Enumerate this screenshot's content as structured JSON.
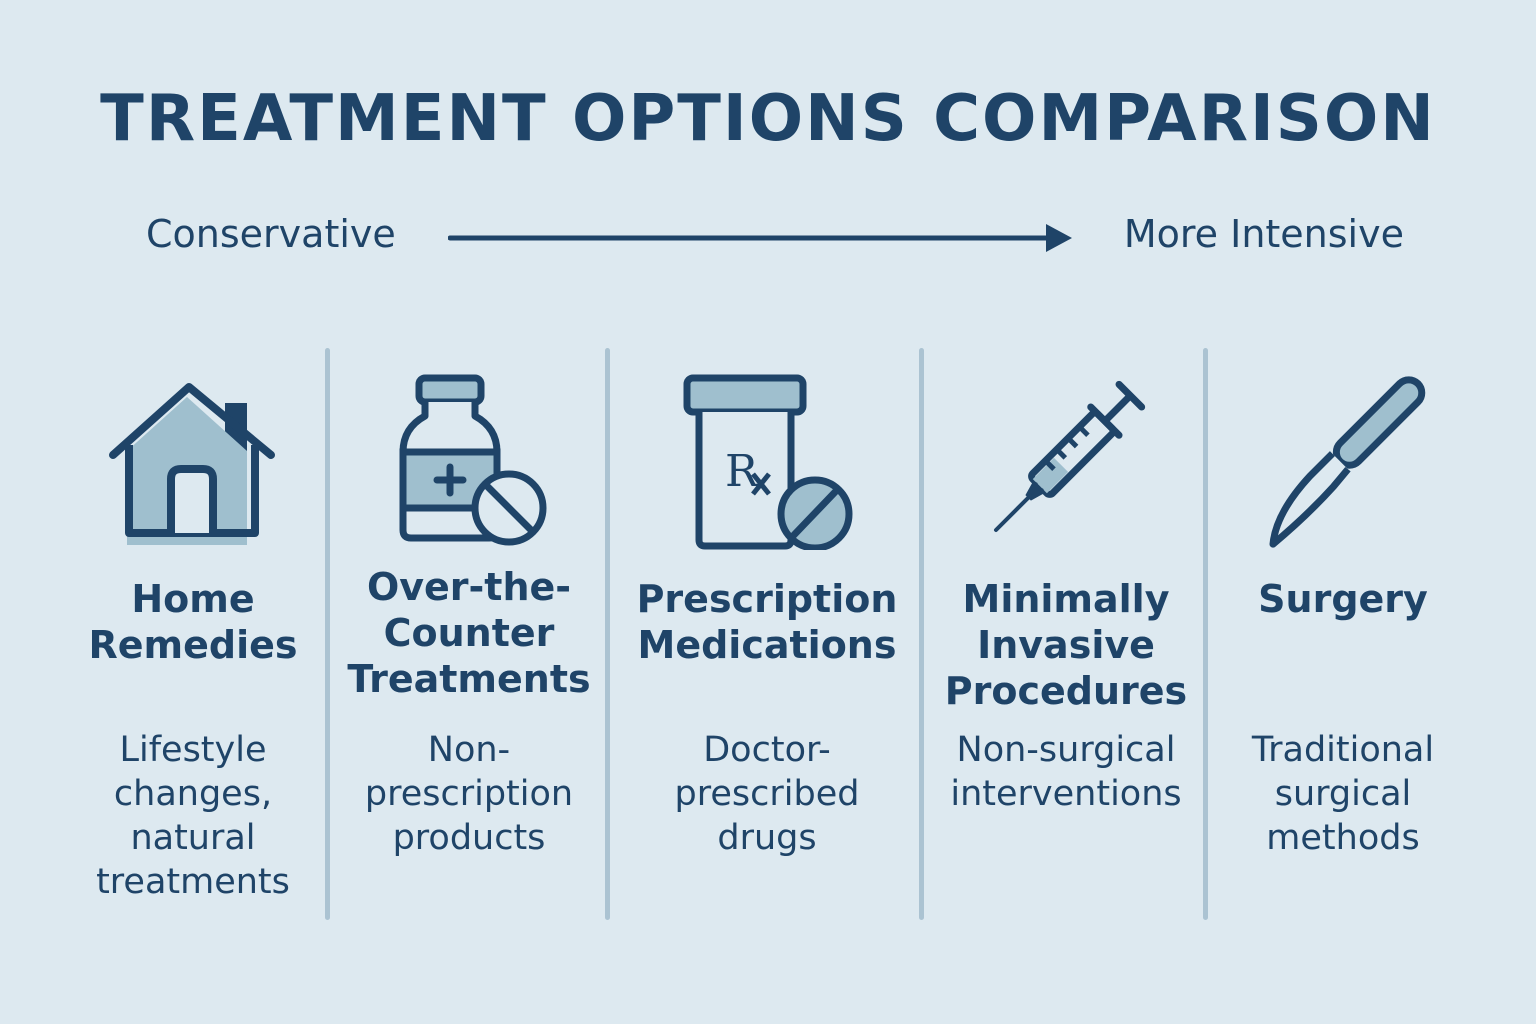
{
  "title": "TREATMENT OPTIONS COMPARISON",
  "scale": {
    "left_label": "Conservative",
    "right_label": "More Intensive"
  },
  "colors": {
    "primary": "#1f4468",
    "icon_fill": "#9fbfce",
    "background": "#dde9f0",
    "divider": "#abc3d2"
  },
  "options": [
    {
      "icon": "house-icon",
      "title_lines": [
        "Home",
        "Remedies"
      ],
      "desc_lines": [
        "Lifestyle",
        "changes,",
        "natural",
        "treatments"
      ]
    },
    {
      "icon": "medicine-bottle-icon",
      "title_lines": [
        "Over-the-",
        "Counter",
        "Treatments"
      ],
      "desc_lines": [
        "Non-",
        "prescription",
        "products"
      ]
    },
    {
      "icon": "prescription-bottle-icon",
      "title_lines": [
        "Prescription",
        "Medications"
      ],
      "desc_lines": [
        "Doctor-",
        "prescribed",
        "drugs"
      ]
    },
    {
      "icon": "syringe-icon",
      "title_lines": [
        "Minimally",
        "Invasive",
        "Procedures"
      ],
      "desc_lines": [
        "Non-surgical",
        "interventions"
      ]
    },
    {
      "icon": "scalpel-icon",
      "title_lines": [
        "Surgery"
      ],
      "desc_lines": [
        "Traditional",
        "surgical",
        "methods"
      ]
    }
  ]
}
